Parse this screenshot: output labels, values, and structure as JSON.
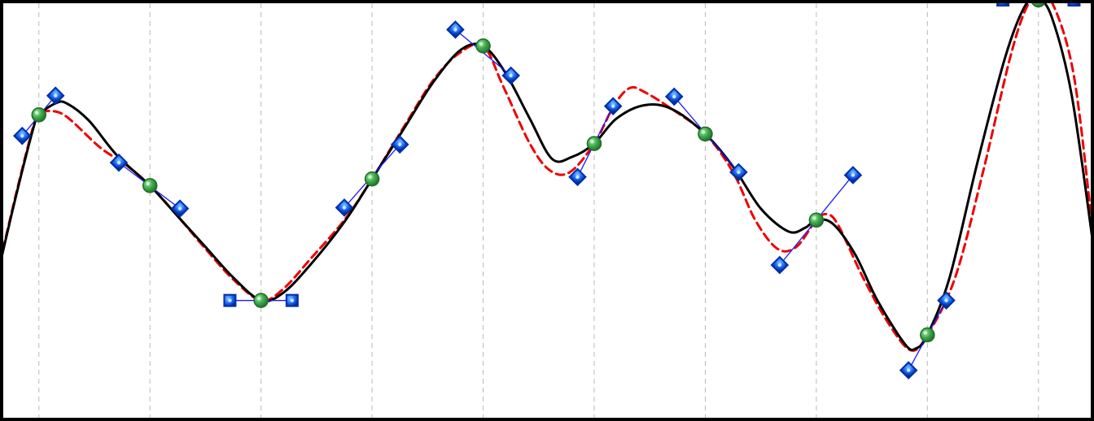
{
  "diagram": {
    "type": "spline-editor",
    "x_range": [
      -0.35,
      9.5
    ],
    "y_range": [
      -0.85,
      1.35
    ],
    "grid": {
      "vertical_lines": [
        0,
        1,
        2,
        3,
        4,
        5,
        6,
        7,
        8,
        9
      ],
      "style": "dashed",
      "color": "#b9b9b9"
    },
    "colors": {
      "frame": "#000000",
      "spline_main": "#000000",
      "spline_alt": "#ee0000",
      "tangent_line": "#1a1aff",
      "handle_fill": "#1f6bff",
      "handle_stroke": "#002fa8",
      "knot_fill": "#3ea84a",
      "knot_stroke": "#1f6d29"
    },
    "knots": [
      {
        "x": 0,
        "y": 0.75,
        "tangent_left": [
          -0.15,
          0.64
        ],
        "tangent_right": [
          0.15,
          0.85
        ],
        "handle_shape": "diamond"
      },
      {
        "x": 1,
        "y": 0.38,
        "tangent_left": [
          0.72,
          0.5
        ],
        "tangent_right": [
          1.27,
          0.26
        ],
        "handle_shape": "diamond"
      },
      {
        "x": 2,
        "y": -0.22,
        "tangent_left": [
          1.72,
          -0.22
        ],
        "tangent_right": [
          2.28,
          -0.22
        ],
        "handle_shape": "square"
      },
      {
        "x": 3,
        "y": 0.415,
        "tangent_left": [
          2.75,
          0.265
        ],
        "tangent_right": [
          3.25,
          0.595
        ],
        "handle_shape": "diamond"
      },
      {
        "x": 4,
        "y": 1.11,
        "tangent_left": [
          3.75,
          1.195
        ],
        "tangent_right": [
          4.25,
          0.955
        ],
        "handle_shape": "diamond"
      },
      {
        "x": 5,
        "y": 0.6,
        "tangent_left": [
          4.85,
          0.425
        ],
        "tangent_right": [
          5.17,
          0.795
        ],
        "handle_shape": "diamond"
      },
      {
        "x": 6,
        "y": 0.65,
        "tangent_left": [
          5.72,
          0.845
        ],
        "tangent_right": [
          6.3,
          0.45
        ],
        "handle_shape": "diamond"
      },
      {
        "x": 7,
        "y": 0.2,
        "tangent_left": [
          6.67,
          -0.035
        ],
        "tangent_right": [
          7.33,
          0.435
        ],
        "handle_shape": "diamond"
      },
      {
        "x": 8,
        "y": -0.4,
        "tangent_left": [
          7.83,
          -0.585
        ],
        "tangent_right": [
          8.17,
          -0.22
        ],
        "handle_shape": "diamond"
      },
      {
        "x": 9,
        "y": 1.35,
        "tangent_left": [
          8.68,
          1.35
        ],
        "tangent_right": [
          9.32,
          1.35
        ],
        "handle_shape": "square"
      }
    ],
    "main_curve": [
      [
        -0.35,
        -0.03
      ],
      [
        -0.2,
        0.34
      ],
      [
        -0.05,
        0.68
      ],
      [
        0,
        0.75
      ],
      [
        0.15,
        0.81
      ],
      [
        0.25,
        0.81
      ],
      [
        0.45,
        0.72
      ],
      [
        0.7,
        0.54
      ],
      [
        1,
        0.38
      ],
      [
        1.25,
        0.22
      ],
      [
        1.5,
        0.06
      ],
      [
        1.75,
        -0.1
      ],
      [
        2,
        -0.22
      ],
      [
        2.2,
        -0.18
      ],
      [
        2.45,
        -0.03
      ],
      [
        2.75,
        0.19
      ],
      [
        3,
        0.415
      ],
      [
        3.3,
        0.69
      ],
      [
        3.55,
        0.92
      ],
      [
        3.8,
        1.09
      ],
      [
        4,
        1.11
      ],
      [
        4.2,
        0.97
      ],
      [
        4.42,
        0.73
      ],
      [
        4.62,
        0.52
      ],
      [
        4.8,
        0.53
      ],
      [
        5,
        0.6
      ],
      [
        5.2,
        0.73
      ],
      [
        5.45,
        0.8
      ],
      [
        5.7,
        0.78
      ],
      [
        6,
        0.65
      ],
      [
        6.25,
        0.48
      ],
      [
        6.5,
        0.26
      ],
      [
        6.75,
        0.14
      ],
      [
        6.9,
        0.16
      ],
      [
        7,
        0.2
      ],
      [
        7.15,
        0.18
      ],
      [
        7.35,
        0.02
      ],
      [
        7.55,
        -0.22
      ],
      [
        7.8,
        -0.45
      ],
      [
        7.9,
        -0.47
      ],
      [
        8,
        -0.4
      ],
      [
        8.2,
        -0.1
      ],
      [
        8.45,
        0.5
      ],
      [
        8.7,
        1.05
      ],
      [
        8.88,
        1.32
      ],
      [
        9,
        1.35
      ],
      [
        9.12,
        1.26
      ],
      [
        9.3,
        0.85
      ],
      [
        9.5,
        0.04
      ]
    ],
    "alt_curve": [
      [
        -0.35,
        -0.02
      ],
      [
        -0.2,
        0.35
      ],
      [
        -0.05,
        0.69
      ],
      [
        0,
        0.75
      ],
      [
        0.1,
        0.77
      ],
      [
        0.25,
        0.74
      ],
      [
        0.55,
        0.58
      ],
      [
        0.78,
        0.49
      ],
      [
        1,
        0.38
      ],
      [
        1.25,
        0.22
      ],
      [
        1.5,
        0.05
      ],
      [
        1.75,
        -0.11
      ],
      [
        2,
        -0.22
      ],
      [
        2.2,
        -0.16
      ],
      [
        2.45,
        0.0
      ],
      [
        2.75,
        0.2
      ],
      [
        3,
        0.415
      ],
      [
        3.3,
        0.7
      ],
      [
        3.55,
        0.93
      ],
      [
        3.78,
        1.07
      ],
      [
        4,
        1.11
      ],
      [
        4.18,
        0.9
      ],
      [
        4.42,
        0.6
      ],
      [
        4.6,
        0.46
      ],
      [
        4.78,
        0.45
      ],
      [
        5,
        0.6
      ],
      [
        5.18,
        0.8
      ],
      [
        5.32,
        0.89
      ],
      [
        5.45,
        0.87
      ],
      [
        5.7,
        0.78
      ],
      [
        6,
        0.65
      ],
      [
        6.25,
        0.45
      ],
      [
        6.45,
        0.2
      ],
      [
        6.65,
        0.05
      ],
      [
        6.82,
        0.06
      ],
      [
        7,
        0.2
      ],
      [
        7.1,
        0.23
      ],
      [
        7.2,
        0.17
      ],
      [
        7.42,
        -0.1
      ],
      [
        7.65,
        -0.34
      ],
      [
        7.85,
        -0.48
      ],
      [
        8,
        -0.4
      ],
      [
        8.25,
        -0.1
      ],
      [
        8.5,
        0.45
      ],
      [
        8.75,
        1.06
      ],
      [
        8.9,
        1.32
      ],
      [
        9,
        1.35
      ],
      [
        9.12,
        1.34
      ],
      [
        9.32,
        0.95
      ],
      [
        9.5,
        0.08
      ]
    ]
  }
}
